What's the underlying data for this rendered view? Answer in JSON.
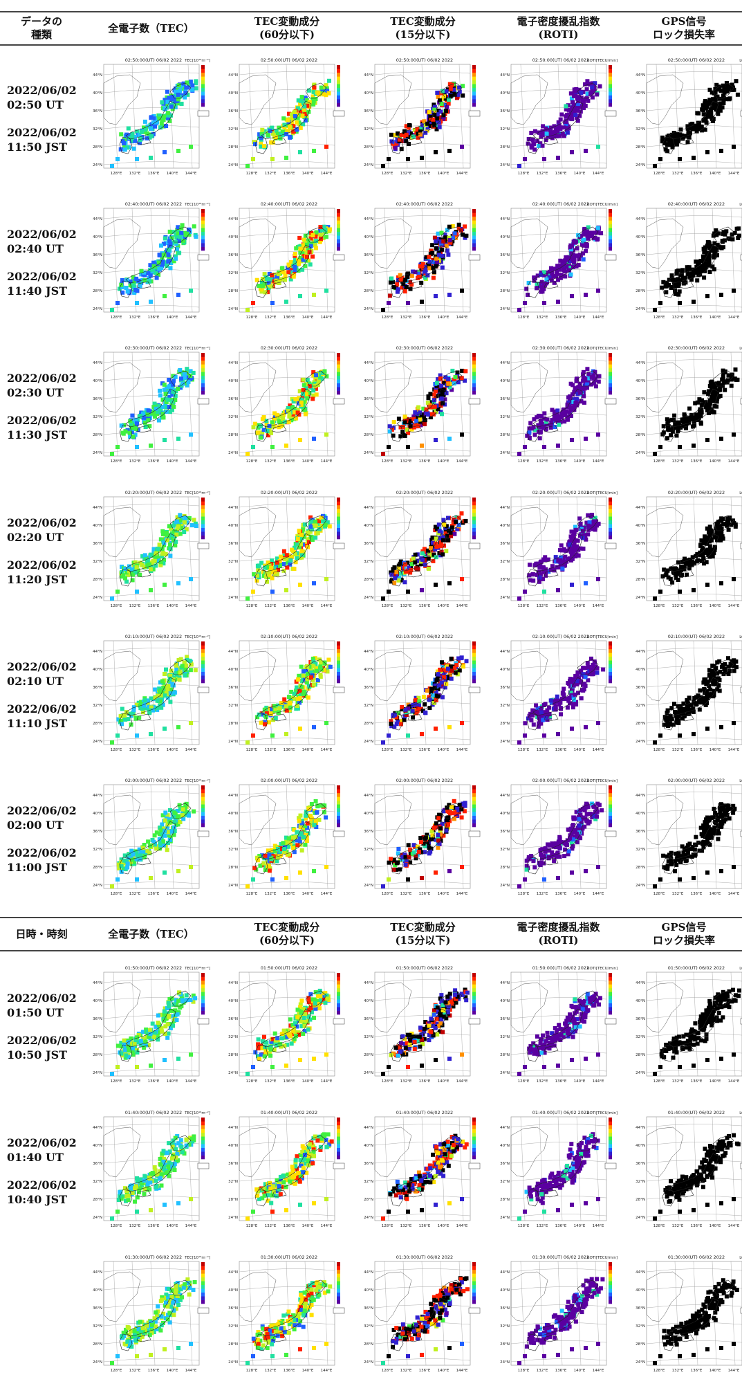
{
  "headers": [
    [
      "データの\n種類",
      "全電子数（TEC）",
      "TEC変動成分\n(60分以下)",
      "TEC変動成分\n(15分以下)",
      "電子密度擾乱指数\n(ROTI)",
      "GPS信号\nロック損失率"
    ],
    [
      "日時・時刻",
      "全電子数（TEC）",
      "TEC変動成分\n(60分以下)",
      "TEC変動成分\n(15分以下)",
      "電子密度擾乱指数\n(ROTI)",
      "GPS信号\nロック損失率"
    ]
  ],
  "rows": [
    {
      "ut": "2022/06/02\n02:50 UT",
      "jst": "2022/06/02\n11:50 JST",
      "panel_title": "02:50:00(UT) 06/02 2022"
    },
    {
      "ut": "2022/06/02\n02:40 UT",
      "jst": "2022/06/02\n11:40 JST",
      "panel_title": "02:40:00(UT) 06/02 2022"
    },
    {
      "ut": "2022/06/02\n02:30 UT",
      "jst": "2022/06/02\n11:30 JST",
      "panel_title": "02:30:00(UT) 06/02 2022"
    },
    {
      "ut": "2022/06/02\n02:20 UT",
      "jst": "2022/06/02\n11:20 JST",
      "panel_title": "02:20:00(UT) 06/02 2022"
    },
    {
      "ut": "2022/06/02\n02:10 UT",
      "jst": "2022/06/02\n11:10 JST",
      "panel_title": "02:10:00(UT) 06/02 2022"
    },
    {
      "ut": "2022/06/02\n02:00 UT",
      "jst": "2022/06/02\n11:00 JST",
      "panel_title": "02:00:00(UT) 06/02 2022"
    },
    {
      "ut": "2022/06/02\n01:50 UT",
      "jst": "2022/06/02\n10:50 JST",
      "panel_title": "01:50:00(UT) 06/02 2022"
    },
    {
      "ut": "2022/06/02\n01:40 UT",
      "jst": "2022/06/02\n10:40 JST",
      "panel_title": "01:40:00(UT) 06/02 2022"
    },
    {
      "ut": "",
      "jst": "",
      "panel_title": "01:30:00(UT) 06/02 2022"
    }
  ],
  "map_ticks": {
    "lat": [
      "44°N",
      "40°N",
      "36°N",
      "32°N",
      "28°N",
      "24°N"
    ],
    "lon": [
      "128°E",
      "132°E",
      "136°E",
      "140°E",
      "144°E"
    ]
  },
  "colorbar_labels": [
    "TEC[10¹⁶m⁻²]",
    "",
    "",
    "ROTI[TECU/min]",
    "LOL[%]"
  ],
  "colormap": [
    "#5a00a0",
    "#3020d0",
    "#2060ff",
    "#20c0ff",
    "#20e0a0",
    "#40f040",
    "#c0f020",
    "#ffe000",
    "#ff9000",
    "#ff2000",
    "#c00000"
  ],
  "colors": {
    "rule": "#444444",
    "land": "#ffffff",
    "coast": "#333333",
    "lol": "#000000"
  }
}
